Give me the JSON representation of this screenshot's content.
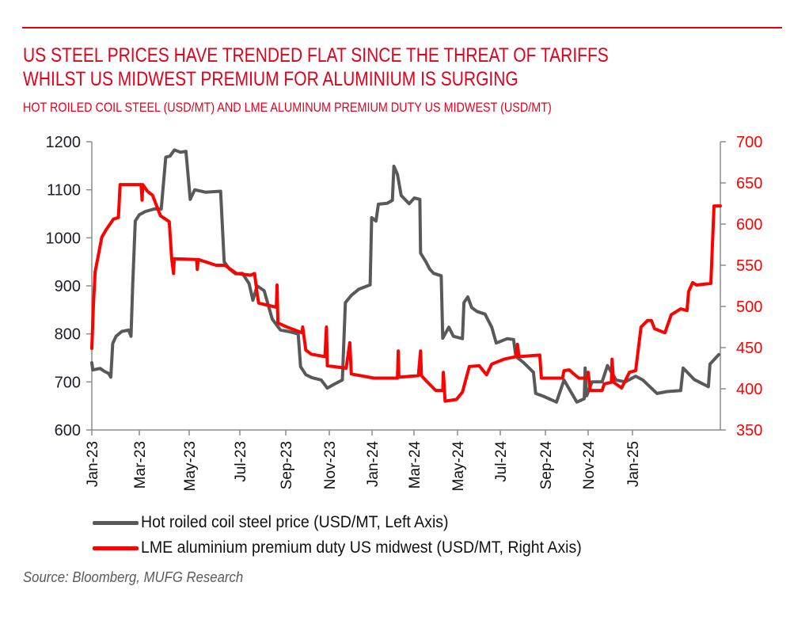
{
  "header": {
    "title_lines": [
      "US STEEL PRICES HAVE TRENDED FLAT SINCE THE THREAT OF TARIFFS",
      "WHILST US MIDWEST PREMIUM FOR ALUMINIUM IS SURGING"
    ],
    "subtitle": "HOT ROILED COIL STEEL (USD/MT) AND LME ALUMINUM PREMIUM DUTY US MIDWEST (USD/MT)"
  },
  "source": "Source: Bloomberg, MUFG Research",
  "colors": {
    "brand_red": "#e3001b",
    "steel_series": "#595959",
    "aluminium_series": "#ff0000",
    "right_axis_labels": "#ff0000",
    "axis": "#8c8c8c"
  },
  "chart_data": {
    "type": "line",
    "title": "HOT ROILED COIL STEEL (USD/MT) AND LME ALUMINUM PREMIUM DUTY US MIDWEST (USD/MT)",
    "x_unit": "months since Jan-2023",
    "xlim": [
      0,
      27.9
    ],
    "x_ticks": [
      {
        "m": 0,
        "label": "Jan-23"
      },
      {
        "m": 2,
        "label": "Mar-23"
      },
      {
        "m": 4,
        "label": "May-23"
      },
      {
        "m": 6,
        "label": "Jul-23"
      },
      {
        "m": 8,
        "label": "Sep-23"
      },
      {
        "m": 10,
        "label": "Nov-23"
      },
      {
        "m": 12,
        "label": "Jan-24"
      },
      {
        "m": 14,
        "label": "Mar-24"
      },
      {
        "m": 16,
        "label": "May-24"
      },
      {
        "m": 18,
        "label": "Jul-24"
      },
      {
        "m": 20,
        "label": "Sep-24"
      },
      {
        "m": 22,
        "label": "Nov-24"
      },
      {
        "m": 24,
        "label": "Jan-25"
      }
    ],
    "y_left": {
      "label": "USD/MT",
      "ylim": [
        600,
        1200
      ],
      "ticks": [
        600,
        700,
        800,
        900,
        1000,
        1100,
        1200
      ]
    },
    "y_right": {
      "label": "USD/MT",
      "ylim": [
        350,
        700
      ],
      "ticks": [
        350,
        400,
        450,
        500,
        550,
        600,
        650,
        700
      ]
    },
    "grid": false,
    "legend_position": "bottom",
    "series": [
      {
        "name": "Hot roiled coil steel price (USD/MT, Left Axis)",
        "axis": "left",
        "color": "#595959",
        "points": [
          [
            0,
            740
          ],
          [
            0.04,
            725
          ],
          [
            0.35,
            728
          ],
          [
            0.53,
            722
          ],
          [
            0.7,
            718
          ],
          [
            0.8,
            710
          ],
          [
            0.88,
            780
          ],
          [
            1.02,
            795
          ],
          [
            1.26,
            805
          ],
          [
            1.55,
            808
          ],
          [
            1.65,
            795
          ],
          [
            1.72,
            900
          ],
          [
            1.83,
            1035
          ],
          [
            2.0,
            1048
          ],
          [
            2.25,
            1055
          ],
          [
            2.6,
            1060
          ],
          [
            2.88,
            1060
          ],
          [
            3.06,
            1168
          ],
          [
            3.23,
            1170
          ],
          [
            3.41,
            1183
          ],
          [
            3.65,
            1178
          ],
          [
            3.87,
            1180
          ],
          [
            4.04,
            1080
          ],
          [
            4.22,
            1100
          ],
          [
            4.64,
            1095
          ],
          [
            5.24,
            1097
          ],
          [
            5.38,
            950
          ],
          [
            5.59,
            935
          ],
          [
            5.83,
            925
          ],
          [
            6.11,
            926
          ],
          [
            6.4,
            905
          ],
          [
            6.57,
            870
          ],
          [
            6.75,
            900
          ],
          [
            7.06,
            890
          ],
          [
            7.41,
            831
          ],
          [
            7.77,
            808
          ],
          [
            8.12,
            805
          ],
          [
            8.57,
            800
          ],
          [
            8.68,
            732
          ],
          [
            8.92,
            715
          ],
          [
            9.2,
            709
          ],
          [
            9.63,
            704
          ],
          [
            9.91,
            687
          ],
          [
            10.22,
            695
          ],
          [
            10.61,
            704
          ],
          [
            10.75,
            865
          ],
          [
            11.03,
            880
          ],
          [
            11.38,
            893
          ],
          [
            11.91,
            902
          ],
          [
            11.98,
            1042
          ],
          [
            12.19,
            1035
          ],
          [
            12.3,
            1070
          ],
          [
            12.72,
            1072
          ],
          [
            12.97,
            1078
          ],
          [
            13.04,
            1149
          ],
          [
            13.21,
            1132
          ],
          [
            13.39,
            1088
          ],
          [
            13.77,
            1071
          ],
          [
            14.02,
            1083
          ],
          [
            14.27,
            1080
          ],
          [
            14.3,
            968
          ],
          [
            14.55,
            950
          ],
          [
            14.72,
            935
          ],
          [
            14.9,
            926
          ],
          [
            15.25,
            921
          ],
          [
            15.32,
            791
          ],
          [
            15.6,
            814
          ],
          [
            15.81,
            795
          ],
          [
            16.23,
            790
          ],
          [
            16.3,
            865
          ],
          [
            16.48,
            877
          ],
          [
            16.66,
            855
          ],
          [
            16.9,
            847
          ],
          [
            17.29,
            841
          ],
          [
            17.6,
            814
          ],
          [
            17.81,
            781
          ],
          [
            18.31,
            790
          ],
          [
            18.59,
            788
          ],
          [
            18.69,
            753
          ],
          [
            19.04,
            740
          ],
          [
            19.47,
            720
          ],
          [
            19.57,
            676
          ],
          [
            19.92,
            670
          ],
          [
            20.52,
            658
          ],
          [
            20.87,
            704
          ],
          [
            21.05,
            690
          ],
          [
            21.47,
            658
          ],
          [
            21.82,
            665
          ],
          [
            21.86,
            729
          ],
          [
            21.93,
            671
          ],
          [
            22.17,
            700
          ],
          [
            22.63,
            700
          ],
          [
            22.87,
            734
          ],
          [
            23.26,
            704
          ],
          [
            23.68,
            700
          ],
          [
            24.14,
            712
          ],
          [
            24.46,
            704
          ],
          [
            25.09,
            676
          ],
          [
            25.54,
            680
          ],
          [
            26.14,
            682
          ],
          [
            26.25,
            729
          ],
          [
            26.74,
            705
          ],
          [
            27.37,
            690
          ],
          [
            27.44,
            737
          ],
          [
            27.83,
            757
          ]
        ]
      },
      {
        "name": "LME aluminium premium duty US midwest (USD/MT, Right Axis)",
        "axis": "right",
        "color": "#ff0000",
        "points": [
          [
            0,
            449
          ],
          [
            0.07,
            504
          ],
          [
            0.14,
            542
          ],
          [
            0.42,
            584
          ],
          [
            0.6,
            593
          ],
          [
            0.91,
            606
          ],
          [
            1.12,
            608
          ],
          [
            1.19,
            648
          ],
          [
            2.07,
            648
          ],
          [
            2.11,
            629
          ],
          [
            2.14,
            648
          ],
          [
            2.32,
            640
          ],
          [
            2.53,
            635
          ],
          [
            2.85,
            610
          ],
          [
            3.2,
            603
          ],
          [
            3.3,
            558
          ],
          [
            3.37,
            540
          ],
          [
            3.4,
            558
          ],
          [
            4.29,
            557
          ],
          [
            4.32,
            545
          ],
          [
            4.36,
            557
          ],
          [
            5.06,
            550
          ],
          [
            5.41,
            550
          ],
          [
            5.87,
            540
          ],
          [
            6.47,
            538
          ],
          [
            6.64,
            540
          ],
          [
            6.75,
            516
          ],
          [
            6.82,
            504
          ],
          [
            7.59,
            499
          ],
          [
            7.62,
            526
          ],
          [
            7.66,
            480
          ],
          [
            8.05,
            475
          ],
          [
            8.75,
            468
          ],
          [
            8.78,
            475
          ],
          [
            8.92,
            447
          ],
          [
            9.17,
            442
          ],
          [
            9.8,
            439
          ],
          [
            9.87,
            475
          ],
          [
            9.91,
            428
          ],
          [
            10.79,
            425
          ],
          [
            10.96,
            456
          ],
          [
            11.03,
            418
          ],
          [
            12.09,
            413
          ],
          [
            13.21,
            413
          ],
          [
            13.25,
            446
          ],
          [
            13.28,
            414
          ],
          [
            14.2,
            416
          ],
          [
            14.3,
            446
          ],
          [
            14.34,
            416
          ],
          [
            14.55,
            410
          ],
          [
            15.0,
            398
          ],
          [
            15.32,
            398
          ],
          [
            15.35,
            420
          ],
          [
            15.43,
            385
          ],
          [
            15.95,
            387
          ],
          [
            16.23,
            396
          ],
          [
            16.55,
            427
          ],
          [
            17.01,
            428
          ],
          [
            17.36,
            417
          ],
          [
            17.6,
            430
          ],
          [
            18.17,
            436
          ],
          [
            18.69,
            439
          ],
          [
            18.76,
            454
          ],
          [
            18.83,
            439
          ],
          [
            19.75,
            441
          ],
          [
            19.82,
            413
          ],
          [
            20.8,
            413
          ],
          [
            20.87,
            422
          ],
          [
            21.12,
            423
          ],
          [
            21.33,
            418
          ],
          [
            21.57,
            413
          ],
          [
            21.96,
            413
          ],
          [
            22.0,
            420
          ],
          [
            22.1,
            398
          ],
          [
            22.63,
            398
          ],
          [
            22.73,
            406
          ],
          [
            23.05,
            408
          ],
          [
            23.08,
            436
          ],
          [
            23.15,
            408
          ],
          [
            23.51,
            401
          ],
          [
            23.86,
            420
          ],
          [
            24.14,
            422
          ],
          [
            24.38,
            475
          ],
          [
            24.67,
            483
          ],
          [
            24.84,
            483
          ],
          [
            24.98,
            473
          ],
          [
            25.44,
            468
          ],
          [
            25.72,
            490
          ],
          [
            26.14,
            497
          ],
          [
            26.42,
            495
          ],
          [
            26.49,
            518
          ],
          [
            26.67,
            529
          ],
          [
            26.84,
            526
          ],
          [
            27.48,
            528
          ],
          [
            27.62,
            622
          ],
          [
            27.9,
            622
          ]
        ]
      }
    ]
  }
}
